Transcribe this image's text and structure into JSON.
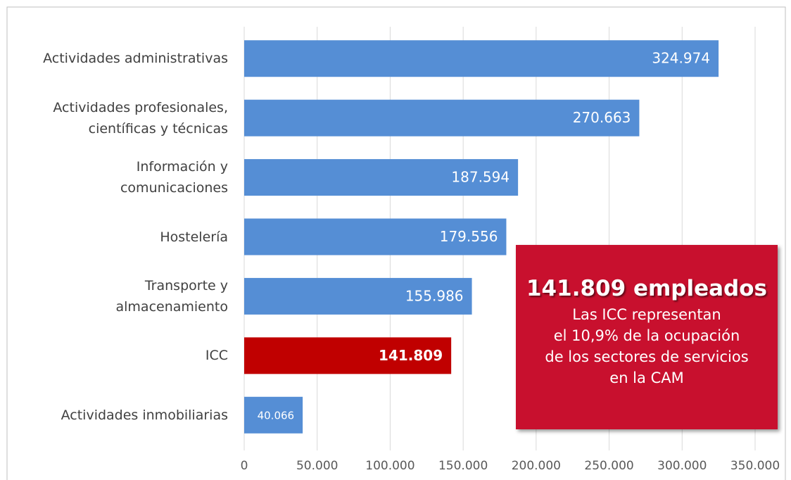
{
  "chart_data": {
    "type": "barh",
    "categories": [
      "Actividades administrativas",
      "Actividades profesionales,\ncientíficas y técnicas",
      "Información y\ncomunicaciones",
      "Hostelería",
      "Transporte y\nalmacenamiento",
      "ICC",
      "Actividades inmobiliarias"
    ],
    "values": [
      324974,
      270663,
      187594,
      179556,
      155986,
      141809,
      40066
    ],
    "value_labels": [
      "324.974",
      "270.663",
      "187.594",
      "179.556",
      "155.986",
      "141.809",
      "40.066"
    ],
    "colors": [
      "#558ed5",
      "#558ed5",
      "#558ed5",
      "#558ed5",
      "#558ed5",
      "#c00000",
      "#558ed5"
    ],
    "xlim": [
      0,
      350000
    ],
    "xticks": [
      0,
      {
        "value": 50000,
        "label": "50.000"
      },
      {
        "value": 100000,
        "label": "100.000"
      },
      {
        "value": 150000,
        "label": "150.000"
      },
      {
        "value": 200000,
        "label": "200.000"
      },
      {
        "value": 250000,
        "label": "250.000"
      },
      {
        "value": 300000,
        "label": "300.000"
      },
      {
        "value": 350000,
        "label": "350.000"
      }
    ],
    "grid": true,
    "annotation": {
      "title": "141.809 empleados",
      "text": "Las ICC representan\nel 10,9% de la ocupación\nde los sectores de servicios\nen la CAM"
    }
  }
}
